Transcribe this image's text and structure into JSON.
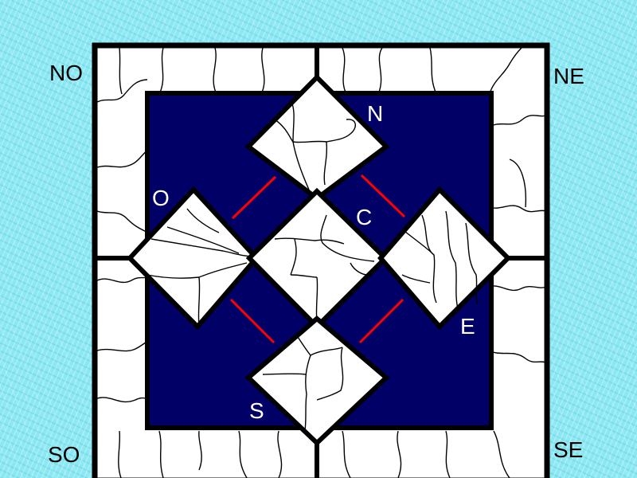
{
  "labels": {
    "outer": {
      "nw": "NO",
      "ne": "NE",
      "sw": "SO",
      "se": "SE"
    },
    "inner": {
      "n": "N",
      "o": "O",
      "c": "C",
      "e": "E",
      "s": "S"
    }
  },
  "colors": {
    "background": "#8be8f2",
    "field": "#000066",
    "outline": "#000000",
    "connector": "#ff0000",
    "region": "#ffffff"
  }
}
